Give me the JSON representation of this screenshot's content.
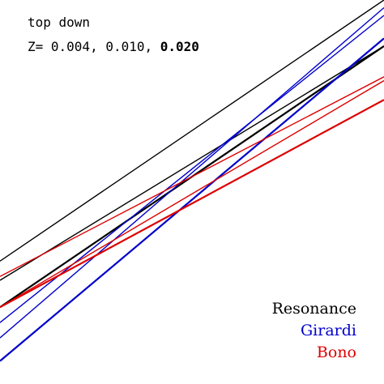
{
  "annotation": {
    "line1": "top down",
    "line2_prefix": "Z= 0.004, 0.010, ",
    "line2_bold": "0.020"
  },
  "chart_data": {
    "type": "line",
    "title": "",
    "xlabel": "",
    "ylabel": "",
    "xlim": [
      0,
      1
    ],
    "ylim": [
      0,
      1
    ],
    "grid": false,
    "legend_position": "bottom-right",
    "series": [
      {
        "name": "Resonance",
        "color": "#000000",
        "lines": [
          {
            "x": [
              0,
              1
            ],
            "y": [
              0.32,
              1.0
            ],
            "width": 1.4
          },
          {
            "x": [
              0,
              1
            ],
            "y": [
              0.27,
              0.88
            ],
            "width": 1.4
          },
          {
            "x": [
              0,
              1
            ],
            "y": [
              0.2,
              0.88
            ],
            "width": 2.2
          }
        ]
      },
      {
        "name": "Girardi",
        "color": "#0000cc",
        "lines": [
          {
            "x": [
              0,
              1
            ],
            "y": [
              0.16,
              0.96
            ],
            "width": 1.4
          },
          {
            "x": [
              0,
              1
            ],
            "y": [
              0.12,
              0.98
            ],
            "width": 1.4
          },
          {
            "x": [
              0,
              1
            ],
            "y": [
              0.06,
              0.9
            ],
            "width": 2.2
          }
        ]
      },
      {
        "name": "Bono",
        "color": "#dd0000",
        "lines": [
          {
            "x": [
              0,
              1
            ],
            "y": [
              0.28,
              0.8
            ],
            "width": 1.4
          },
          {
            "x": [
              0,
              1
            ],
            "y": [
              0.2,
              0.79
            ],
            "width": 1.4
          },
          {
            "x": [
              0,
              1
            ],
            "y": [
              0.2,
              0.74
            ],
            "width": 2.2
          }
        ]
      }
    ]
  }
}
